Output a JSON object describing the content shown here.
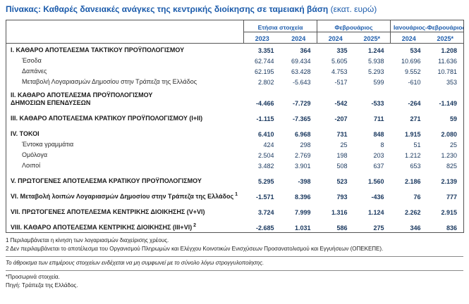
{
  "page": {
    "title": "Πίνακας: Καθαρές δανειακές ανάγκες της κεντρικής διοίκησης σε ταμειακή βάση",
    "title_unit": "(εκατ. ευρώ)"
  },
  "colors": {
    "accent_blue": "#1b5bab",
    "number_navy": "#17365d",
    "border": "#555555"
  },
  "table": {
    "header": {
      "groups": [
        {
          "label": "Ετήσια στοιχεία",
          "years": [
            "2023",
            "2024"
          ]
        },
        {
          "label": "Φεβρουάριος",
          "years": [
            "2024",
            "2025*"
          ]
        },
        {
          "label": "Ιανουάριος-Φεβρουάριος",
          "years": [
            "2024",
            "2025*"
          ]
        }
      ]
    },
    "rows": [
      {
        "label": "I. ΚΑΘΑΡΟ ΑΠΟΤΕΛΕΣΜΑ  ΤΑΚΤΙΚΟΥ ΠΡΟΫΠΟΛΟΓΙΣΜΟΥ",
        "style": "main",
        "values": [
          "3.351",
          "364",
          "335",
          "1.244",
          "534",
          "1.208"
        ],
        "gap_after": false
      },
      {
        "label": "Έσοδα",
        "style": "sub",
        "values": [
          "62.744",
          "69.434",
          "5.605",
          "5.938",
          "10.696",
          "11.636"
        ],
        "gap_after": false
      },
      {
        "label": "Δαπάνες",
        "style": "sub",
        "values": [
          "62.195",
          "63.428",
          "4.753",
          "5.293",
          "9.552",
          "10.781"
        ],
        "gap_after": false
      },
      {
        "label": "Μεταβολή Λογαριασμών Δημοσίου στην Τράπεζα της Ελλάδος",
        "style": "sub",
        "values": [
          "2.802",
          "-5.643",
          "-517",
          "599",
          "-610",
          "353"
        ],
        "gap_after": true
      },
      {
        "label": "II. ΚΑΘΑΡΟ ΑΠΟΤΕΛΕΣΜΑ ΠΡΟΫΠΟΛΟΓΙΣΜΟΥ\nΔΗΜΟΣΙΩΝ ΕΠΕΝΔΥΣΕΩΝ",
        "style": "main",
        "values": [
          "-4.466",
          "-7.729",
          "-542",
          "-533",
          "-264",
          "-1.149"
        ],
        "gap_after": true
      },
      {
        "label": "III. ΚΑΘΑΡΟ ΑΠΟΤΕΛΕΣΜΑ ΚΡΑΤΙΚΟΥ ΠΡΟΫΠΟΛΟΓΙΣΜΟΥ (I+II)",
        "style": "main",
        "values": [
          "-1.115",
          "-7.365",
          "-207",
          "711",
          "271",
          "59"
        ],
        "gap_after": true
      },
      {
        "label": "IV. ΤΟΚΟΙ",
        "style": "main",
        "values": [
          "6.410",
          "6.968",
          "731",
          "848",
          "1.915",
          "2.080"
        ],
        "gap_after": false
      },
      {
        "label": "Έντοκα γραμμάτια",
        "style": "sub",
        "values": [
          "424",
          "298",
          "25",
          "8",
          "51",
          "25"
        ],
        "gap_after": false
      },
      {
        "label": "Ομόλογα",
        "style": "sub",
        "values": [
          "2.504",
          "2.769",
          "198",
          "203",
          "1.212",
          "1.230"
        ],
        "gap_after": false
      },
      {
        "label": "Λοιποί",
        "style": "sub",
        "values": [
          "3.482",
          "3.901",
          "508",
          "637",
          "653",
          "825"
        ],
        "gap_after": true
      },
      {
        "label": "V. ΠΡΩΤΟΓΕΝΕΣ ΑΠΟΤΕΛΕΣΜΑ  ΚΡΑΤΙΚΟΥ ΠΡΟΫΠΟΛΟΓΙΣΜΟΥ",
        "style": "main",
        "values": [
          "5.295",
          "-398",
          "523",
          "1.560",
          "2.186",
          "2.139"
        ],
        "gap_after": true
      },
      {
        "label": "VI. Μεταβολή λοιπών Λογαριασμών Δημοσίου στην Τράπεζα της Ελλάδος",
        "sup": "1",
        "style": "main",
        "values": [
          "-1.571",
          "8.396",
          "793",
          "-436",
          "76",
          "777"
        ],
        "gap_after": true
      },
      {
        "label": "VII. ΠΡΩΤΟΓΕΝΕΣ ΑΠΟΤΕΛΕΣΜΑ ΚΕΝΤΡΙΚΗΣ ΔΙΟΙΚΗΣΗΣ (V+VI)",
        "style": "main",
        "values": [
          "3.724",
          "7.999",
          "1.316",
          "1.124",
          "2.262",
          "2.915"
        ],
        "gap_after": true
      },
      {
        "label": "VIII. ΚΑΘΑΡΟ ΑΠΟΤΕΛΕΣΜΑ ΚΕΝΤΡΙΚΗΣ ΔΙΟΙΚΗΣΗΣ (III+VI)",
        "sup": "2",
        "style": "main",
        "values": [
          "-2.685",
          "1.031",
          "586",
          "275",
          "346",
          "836"
        ],
        "gap_after": false
      }
    ]
  },
  "footnotes": [
    "1 Περιλαμβάνεται η κίνηση των λογαριασμών διαχείρισης χρέους.",
    "2 Δεν περιλαμβάνεται το αποτέλεσμα του Οργανισμού Πληρωμών και Ελέγχου Κοινοτικών Ενισχύσεων Προσανατολισμού και Εγγυήσεων (ΟΠΕΚΕΠΕ)."
  ],
  "notes": {
    "rounding": "Το άθροισμα των επιμέρους στοιχείων ενδέχεται να μη συμφωνεί με το σύνολο λόγω στρογγυλοποίησης.",
    "provisional": "*Προσωρινά στοιχεία.",
    "source": "Πηγή: Τράπεζα της Ελλάδος."
  }
}
